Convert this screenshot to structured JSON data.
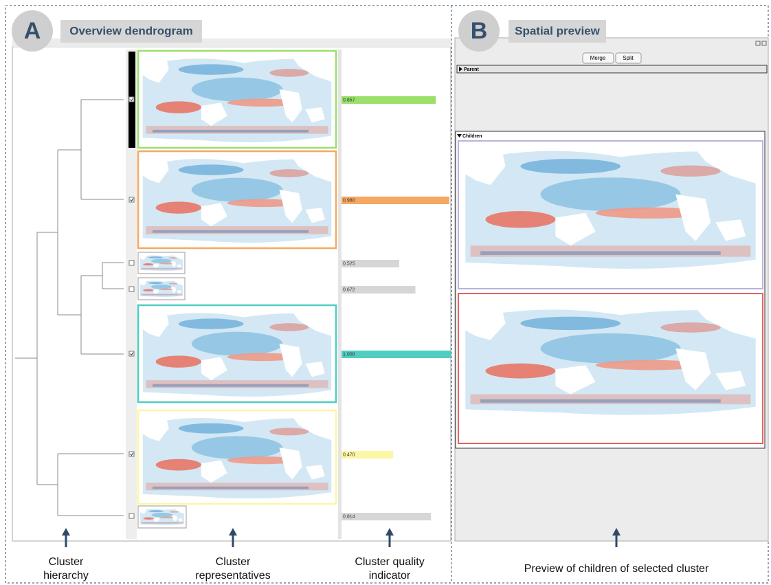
{
  "panels": [
    {
      "letter": "A",
      "title": "Overview dendrogram"
    },
    {
      "letter": "B",
      "title": "Spatial preview"
    }
  ],
  "toolbar": {
    "merge": "Merge",
    "split": "Split"
  },
  "sections": {
    "parent": "Parent",
    "children": "Children"
  },
  "clusters": [
    {
      "quality": 0.857,
      "label": "0.857",
      "color": "#9be06a"
    },
    {
      "quality": 0.98,
      "label": "0.980",
      "color": "#f5a862"
    },
    {
      "quality": 0.525,
      "label": "0.525",
      "color": "#d6d6d6"
    },
    {
      "quality": 0.672,
      "label": "0.672",
      "color": "#d6d6d6"
    },
    {
      "quality": 1.0,
      "label": "1.000",
      "color": "#4ecdc0"
    },
    {
      "quality": 0.47,
      "label": "0.470",
      "color": "#fbf7a4"
    },
    {
      "quality": 0.814,
      "label": "0.814",
      "color": "#d6d6d6"
    }
  ],
  "annotations": [
    "Cluster hierarchy",
    "Cluster representatives",
    "Cluster quality indicator",
    "Preview of children of selected cluster"
  ]
}
